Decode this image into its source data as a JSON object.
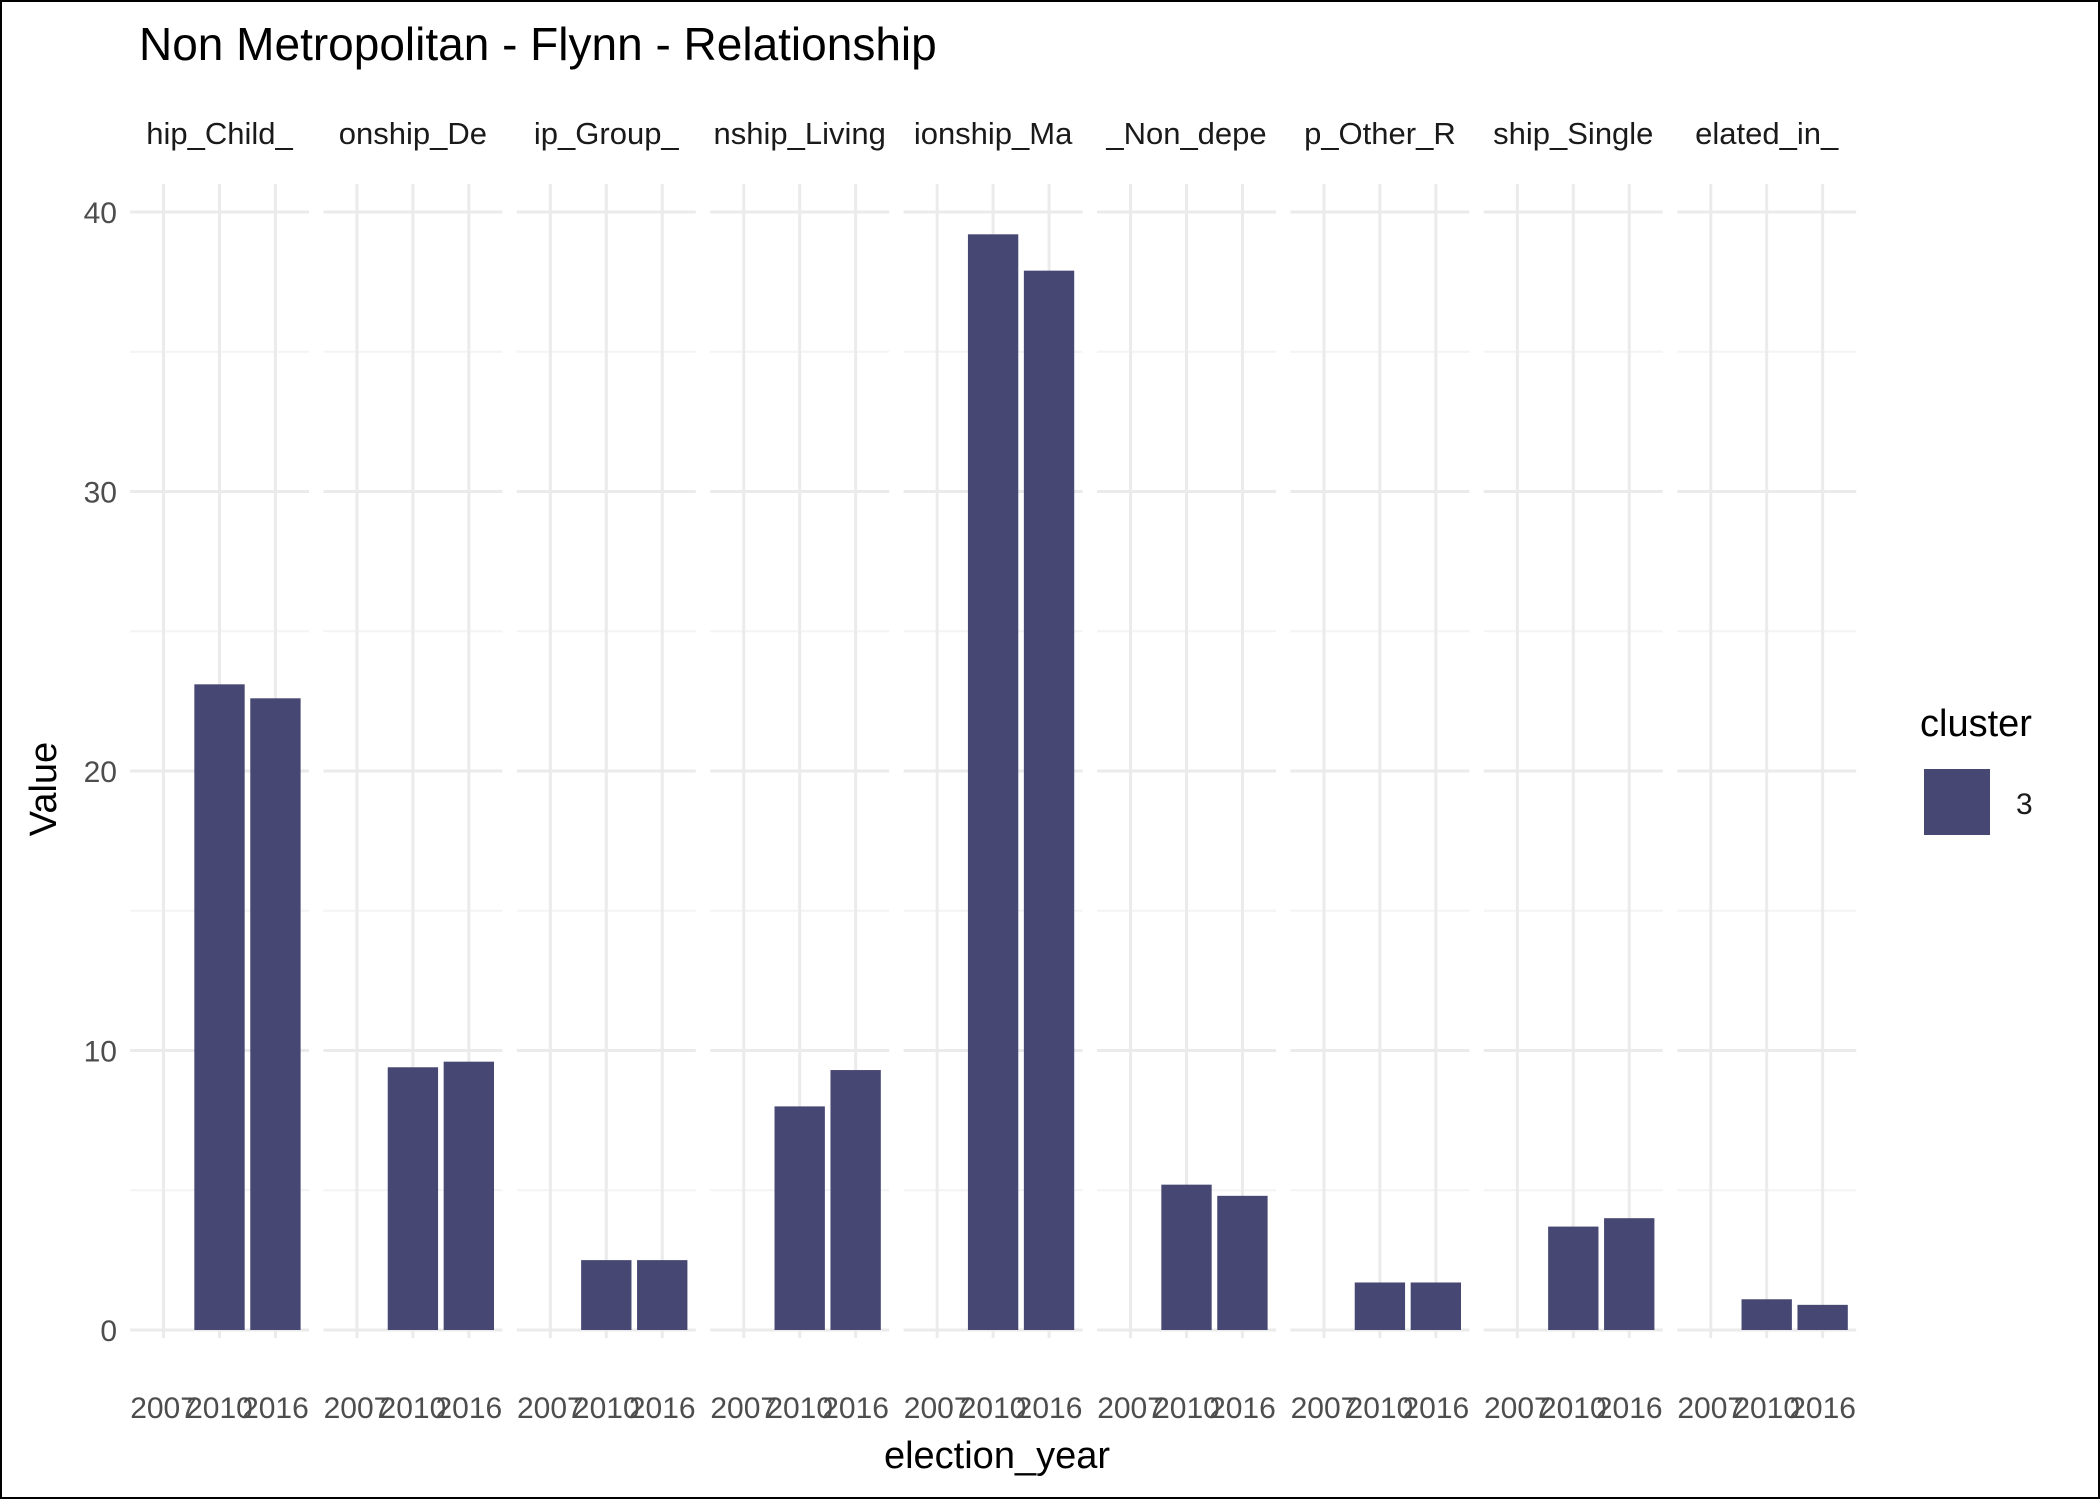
{
  "chart_data": {
    "type": "bar",
    "title": "Non Metropolitan - Flynn - Relationship",
    "xlabel": "election_year",
    "ylabel": "Value",
    "ylim": [
      0,
      41
    ],
    "yticks": [
      0,
      10,
      20,
      30,
      40
    ],
    "xticks": [
      "2007",
      "2010",
      "2016"
    ],
    "grid": true,
    "legend": {
      "title": "cluster",
      "position": "right",
      "entries": [
        {
          "label": "3",
          "color": "#474773"
        }
      ]
    },
    "panels": [
      {
        "strip": "hip_Child_",
        "x": [
          "2010",
          "2016"
        ],
        "values": [
          23.1,
          22.6
        ]
      },
      {
        "strip": "onship_De",
        "x": [
          "2010",
          "2016"
        ],
        "values": [
          9.4,
          9.6
        ]
      },
      {
        "strip": "ip_Group_",
        "x": [
          "2010",
          "2016"
        ],
        "values": [
          2.5,
          2.5
        ]
      },
      {
        "strip": "nship_Living",
        "x": [
          "2010",
          "2016"
        ],
        "values": [
          8.0,
          9.3
        ]
      },
      {
        "strip": "ionship_Ma",
        "x": [
          "2010",
          "2016"
        ],
        "values": [
          39.2,
          37.9
        ]
      },
      {
        "strip": "_Non_depe",
        "x": [
          "2010",
          "2016"
        ],
        "values": [
          5.2,
          4.8
        ]
      },
      {
        "strip": "p_Other_R",
        "x": [
          "2010",
          "2016"
        ],
        "values": [
          1.7,
          1.7
        ]
      },
      {
        "strip": "ship_Single",
        "x": [
          "2010",
          "2016"
        ],
        "values": [
          3.7,
          4.0
        ]
      },
      {
        "strip": "elated_in_",
        "x": [
          "2010",
          "2016"
        ],
        "values": [
          1.1,
          0.9
        ]
      }
    ],
    "colors": {
      "bar": "#474773",
      "grid_major": "#ebebeb",
      "grid_minor": "#f4f4f4",
      "text": "#000000",
      "tick_text": "#4d4d4d"
    }
  }
}
